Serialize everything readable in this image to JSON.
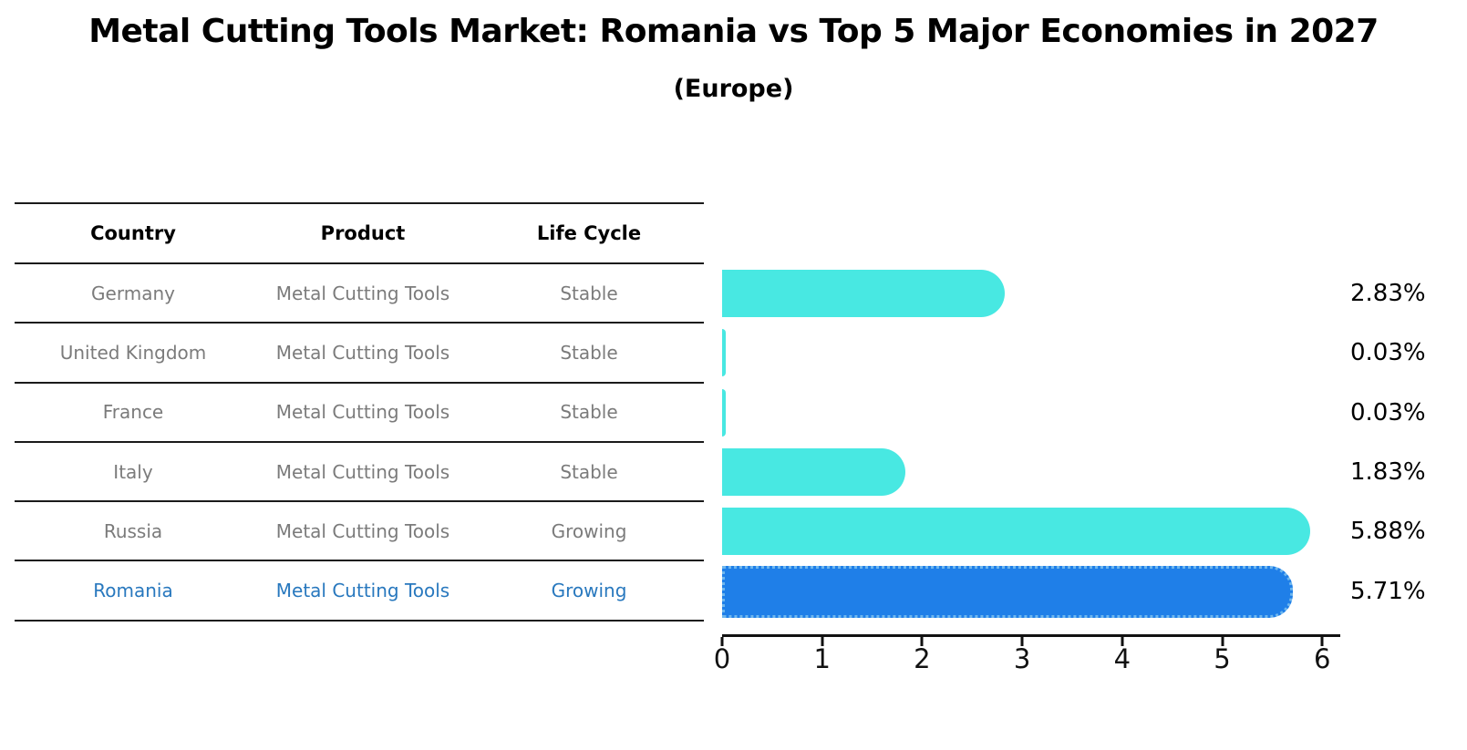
{
  "title": "Metal Cutting Tools Market: Romania vs Top 5 Major Economies in 2027",
  "subtitle": "(Europe)",
  "table": {
    "headers": [
      "Country",
      "Product",
      "Life Cycle"
    ],
    "rows": [
      {
        "country": "Germany",
        "product": "Metal Cutting Tools",
        "life_cycle": "Stable",
        "highlighted": false
      },
      {
        "country": "United Kingdom",
        "product": "Metal Cutting Tools",
        "life_cycle": "Stable",
        "highlighted": false
      },
      {
        "country": "France",
        "product": "Metal Cutting Tools",
        "life_cycle": "Stable",
        "highlighted": false
      },
      {
        "country": "Italy",
        "product": "Metal Cutting Tools",
        "life_cycle": "Stable",
        "highlighted": false
      },
      {
        "country": "Russia",
        "product": "Metal Cutting Tools",
        "life_cycle": "Growing",
        "highlighted": false
      },
      {
        "country": "Romania",
        "product": "Metal Cutting Tools",
        "life_cycle": "Growing",
        "highlighted": true
      }
    ]
  },
  "chart_data": {
    "type": "bar",
    "orientation": "horizontal",
    "title": "Metal Cutting Tools Market: Romania vs Top 5 Major Economies in 2027 (Europe)",
    "categories": [
      "Germany",
      "United Kingdom",
      "France",
      "Italy",
      "Russia",
      "Romania"
    ],
    "values": [
      2.83,
      0.03,
      0.03,
      1.83,
      5.88,
      5.71
    ],
    "value_labels": [
      "2.83%",
      "0.03%",
      "0.03%",
      "1.83%",
      "5.88%",
      "5.71%"
    ],
    "x_ticks": [
      "0",
      "1",
      "2",
      "3",
      "4",
      "5",
      "6"
    ],
    "xlim": [
      0,
      6.18
    ],
    "grid": false,
    "legend": false,
    "bar_color": "#48e8e2",
    "highlight_bar_color": "#1f7fe8",
    "highlight_index": 5
  },
  "colors": {
    "bar_cyan": "#48e8e2",
    "bar_blue": "#1f7fe8",
    "highlight_border_blue": "#6fb7ee",
    "highlight_text_blue": "#2878be",
    "row_text_gray": "#7b7b7b",
    "axis_black": "#111111"
  }
}
